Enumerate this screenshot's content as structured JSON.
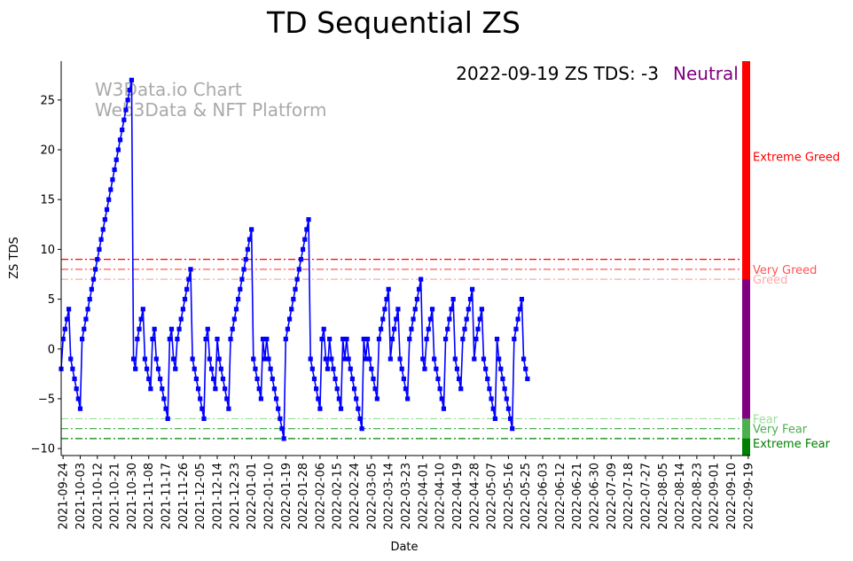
{
  "chart_data": {
    "type": "line",
    "title": "TD Sequential ZS",
    "xlabel": "Date",
    "ylabel": "ZS TDS",
    "ylim": [
      -10.7,
      28.9
    ],
    "xlim": [
      "2021-09-23",
      "2022-09-20"
    ],
    "y_ticks": [
      -10,
      -5,
      0,
      5,
      10,
      15,
      20,
      25
    ],
    "x_ticks": [
      "2021-09-24",
      "2021-10-03",
      "2021-10-12",
      "2021-10-21",
      "2021-10-30",
      "2021-11-08",
      "2021-11-17",
      "2021-11-26",
      "2021-12-05",
      "2021-12-14",
      "2021-12-23",
      "2022-01-01",
      "2022-01-10",
      "2022-01-19",
      "2022-01-28",
      "2022-02-06",
      "2022-02-15",
      "2022-02-24",
      "2022-03-05",
      "2022-03-14",
      "2022-03-23",
      "2022-04-01",
      "2022-04-10",
      "2022-04-19",
      "2022-04-28",
      "2022-05-07",
      "2022-05-16",
      "2022-05-25",
      "2022-06-03",
      "2022-06-12",
      "2022-06-21",
      "2022-06-30",
      "2022-07-09",
      "2022-07-18",
      "2022-07-27",
      "2022-08-05",
      "2022-08-14",
      "2022-08-23",
      "2022-09-01",
      "2022-09-10",
      "2022-09-19"
    ],
    "grid": false,
    "watermark": [
      "W3Data.io Chart",
      "Web3Data & NFT Platform"
    ],
    "status": {
      "text": "2022-09-19 ZS TDS: -3",
      "label": "Neutral",
      "label_color": "#800080"
    },
    "thresholds": [
      {
        "name": "Extreme Greed",
        "value": 9,
        "color": "#ff0000"
      },
      {
        "name": "Very Greed",
        "value": 8,
        "color": "#ff5555"
      },
      {
        "name": "Greed",
        "value": 7,
        "color": "#ffaaaa"
      },
      {
        "name": "Fear",
        "value": -7,
        "color": "#99dd99"
      },
      {
        "name": "Very Fear",
        "value": -8,
        "color": "#4caf50"
      },
      {
        "name": "Extreme Fear",
        "value": -9,
        "color": "#008000"
      }
    ],
    "side_bar": [
      {
        "from": 7,
        "to": 28.9,
        "color": "#ff0000"
      },
      {
        "from": -7,
        "to": 7,
        "color": "#800080"
      },
      {
        "from": -9,
        "to": -7,
        "color": "#4caf50"
      },
      {
        "from": -10.7,
        "to": -9,
        "color": "#008000"
      }
    ],
    "series": [
      {
        "color": "#0000ff",
        "start_date": "2021-09-23",
        "values": [
          -2,
          1,
          2,
          3,
          4,
          -1,
          -2,
          -3,
          -4,
          -5,
          -6,
          1,
          2,
          3,
          4,
          5,
          6,
          7,
          8,
          9,
          10,
          11,
          12,
          13,
          14,
          15,
          16,
          17,
          18,
          19,
          20,
          21,
          22,
          23,
          24,
          25,
          26,
          27,
          -1,
          -2,
          1,
          2,
          3,
          4,
          -1,
          -2,
          -3,
          -4,
          1,
          2,
          -1,
          -2,
          -3,
          -4,
          -5,
          -6,
          -7,
          1,
          2,
          -1,
          -2,
          1,
          2,
          3,
          4,
          5,
          6,
          7,
          8,
          -1,
          -2,
          -3,
          -4,
          -5,
          -6,
          -7,
          1,
          2,
          -1,
          -2,
          -3,
          -4,
          1,
          -1,
          -2,
          -3,
          -4,
          -5,
          -6,
          1,
          2,
          3,
          4,
          5,
          6,
          7,
          8,
          9,
          10,
          11,
          12,
          -1,
          -2,
          -3,
          -4,
          -5,
          1,
          -1,
          1,
          -1,
          -2,
          -3,
          -4,
          -5,
          -6,
          -7,
          -8,
          -9,
          1,
          2,
          3,
          4,
          5,
          6,
          7,
          8,
          9,
          10,
          11,
          12,
          13,
          -1,
          -2,
          -3,
          -4,
          -5,
          -6,
          1,
          2,
          -1,
          -2,
          1,
          -1,
          -2,
          -3,
          -4,
          -5,
          -6,
          1,
          -1,
          1,
          -1,
          -2,
          -3,
          -4,
          -5,
          -6,
          -7,
          -8,
          1,
          -1,
          1,
          -1,
          -2,
          -3,
          -4,
          -5,
          1,
          2,
          3,
          4,
          5,
          6,
          -1,
          1,
          2,
          3,
          4,
          -1,
          -2,
          -3,
          -4,
          -5,
          1,
          2,
          3,
          4,
          5,
          6,
          7,
          -1,
          -2,
          1,
          2,
          3,
          4,
          -1,
          -2,
          -3,
          -4,
          -5,
          -6,
          1,
          2,
          3,
          4,
          5,
          -1,
          -2,
          -3,
          -4,
          1,
          2,
          3,
          4,
          5,
          6,
          -1,
          1,
          2,
          3,
          4,
          -1,
          -2,
          -3,
          -4,
          -5,
          -6,
          -7,
          1,
          -1,
          -2,
          -3,
          -4,
          -5,
          -6,
          -7,
          -8,
          1,
          2,
          3,
          4,
          5,
          -1,
          -2,
          -3
        ]
      }
    ]
  }
}
